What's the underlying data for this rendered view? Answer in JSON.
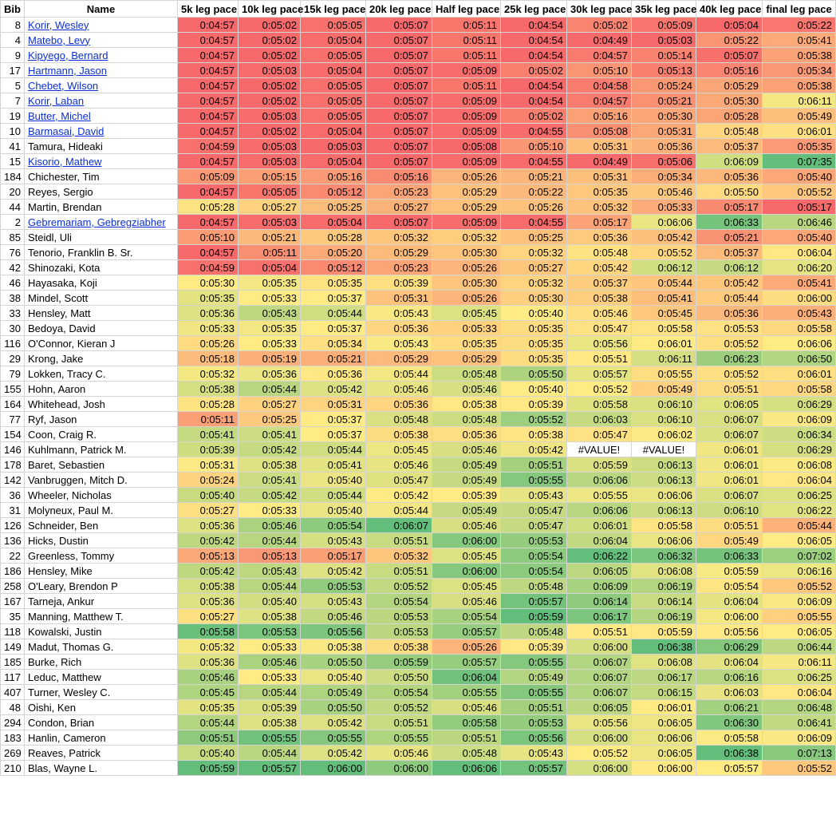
{
  "columns": [
    "Bib",
    "Name",
    "5k leg pace",
    "10k leg pace",
    "15k leg pace",
    "20k leg pace",
    "Half leg pace",
    "25k leg pace",
    "30k leg pace",
    "35k leg pace",
    "40k leg pace",
    "final leg pace"
  ],
  "color_scale": {
    "low": "#f8696b",
    "mid": "#ffeb84",
    "high": "#63be7b"
  },
  "rows": [
    {
      "bib": "8",
      "name": "Korir, Wesley",
      "link": true,
      "paces": [
        "0:04:57",
        "0:05:02",
        "0:05:05",
        "0:05:07",
        "0:05:11",
        "0:04:54",
        "0:05:02",
        "0:05:09",
        "0:05:04",
        "0:05:22"
      ]
    },
    {
      "bib": "4",
      "name": "Matebo, Levy",
      "link": true,
      "paces": [
        "0:04:57",
        "0:05:02",
        "0:05:04",
        "0:05:07",
        "0:05:11",
        "0:04:54",
        "0:04:49",
        "0:05:03",
        "0:05:22",
        "0:05:41"
      ]
    },
    {
      "bib": "9",
      "name": "Kipyego, Bernard",
      "link": true,
      "paces": [
        "0:04:57",
        "0:05:02",
        "0:05:05",
        "0:05:07",
        "0:05:11",
        "0:04:54",
        "0:04:57",
        "0:05:14",
        "0:05:07",
        "0:05:38"
      ]
    },
    {
      "bib": "17",
      "name": "Hartmann, Jason",
      "link": true,
      "paces": [
        "0:04:57",
        "0:05:03",
        "0:05:04",
        "0:05:07",
        "0:05:09",
        "0:05:02",
        "0:05:10",
        "0:05:13",
        "0:05:16",
        "0:05:34"
      ]
    },
    {
      "bib": "5",
      "name": "Chebet, Wilson",
      "link": true,
      "paces": [
        "0:04:57",
        "0:05:02",
        "0:05:05",
        "0:05:07",
        "0:05:11",
        "0:04:54",
        "0:04:58",
        "0:05:24",
        "0:05:29",
        "0:05:38"
      ]
    },
    {
      "bib": "7",
      "name": "Korir, Laban",
      "link": true,
      "paces": [
        "0:04:57",
        "0:05:02",
        "0:05:05",
        "0:05:07",
        "0:05:09",
        "0:04:54",
        "0:04:57",
        "0:05:21",
        "0:05:30",
        "0:06:11"
      ]
    },
    {
      "bib": "19",
      "name": "Butter, Michel",
      "link": true,
      "paces": [
        "0:04:57",
        "0:05:03",
        "0:05:05",
        "0:05:07",
        "0:05:09",
        "0:05:02",
        "0:05:16",
        "0:05:30",
        "0:05:28",
        "0:05:49"
      ]
    },
    {
      "bib": "10",
      "name": "Barmasai, David",
      "link": true,
      "paces": [
        "0:04:57",
        "0:05:02",
        "0:05:04",
        "0:05:07",
        "0:05:09",
        "0:04:55",
        "0:05:08",
        "0:05:31",
        "0:05:48",
        "0:06:01"
      ]
    },
    {
      "bib": "41",
      "name": "Tamura, Hideaki",
      "link": false,
      "paces": [
        "0:04:59",
        "0:05:03",
        "0:05:03",
        "0:05:07",
        "0:05:08",
        "0:05:10",
        "0:05:31",
        "0:05:36",
        "0:05:37",
        "0:05:35"
      ]
    },
    {
      "bib": "15",
      "name": "Kisorio, Mathew",
      "link": true,
      "paces": [
        "0:04:57",
        "0:05:03",
        "0:05:04",
        "0:05:07",
        "0:05:09",
        "0:04:55",
        "0:04:49",
        "0:05:06",
        "0:06:09",
        "0:07:35"
      ]
    },
    {
      "bib": "184",
      "name": "Chichester, Tim",
      "link": false,
      "paces": [
        "0:05:09",
        "0:05:15",
        "0:05:16",
        "0:05:16",
        "0:05:26",
        "0:05:21",
        "0:05:31",
        "0:05:34",
        "0:05:36",
        "0:05:40"
      ]
    },
    {
      "bib": "20",
      "name": "Reyes, Sergio",
      "link": false,
      "paces": [
        "0:04:57",
        "0:05:05",
        "0:05:12",
        "0:05:23",
        "0:05:29",
        "0:05:22",
        "0:05:35",
        "0:05:46",
        "0:05:50",
        "0:05:52"
      ]
    },
    {
      "bib": "44",
      "name": "Martin, Brendan",
      "link": false,
      "paces": [
        "0:05:28",
        "0:05:27",
        "0:05:25",
        "0:05:27",
        "0:05:29",
        "0:05:26",
        "0:05:32",
        "0:05:33",
        "0:05:17",
        "0:05:17"
      ]
    },
    {
      "bib": "2",
      "name": "Gebremariam, Gebregziabher",
      "link": true,
      "paces": [
        "0:04:57",
        "0:05:03",
        "0:05:04",
        "0:05:07",
        "0:05:09",
        "0:04:55",
        "0:05:17",
        "0:06:06",
        "0:06:33",
        "0:06:46"
      ]
    },
    {
      "bib": "85",
      "name": "Steidl, Uli",
      "link": false,
      "paces": [
        "0:05:10",
        "0:05:21",
        "0:05:28",
        "0:05:32",
        "0:05:32",
        "0:05:25",
        "0:05:36",
        "0:05:42",
        "0:05:21",
        "0:05:40"
      ]
    },
    {
      "bib": "76",
      "name": "Tenorio, Franklin B. Sr.",
      "link": false,
      "paces": [
        "0:04:57",
        "0:05:11",
        "0:05:20",
        "0:05:29",
        "0:05:30",
        "0:05:32",
        "0:05:48",
        "0:05:52",
        "0:05:37",
        "0:06:04"
      ]
    },
    {
      "bib": "42",
      "name": "Shinozaki, Kota",
      "link": false,
      "paces": [
        "0:04:59",
        "0:05:04",
        "0:05:12",
        "0:05:23",
        "0:05:26",
        "0:05:27",
        "0:05:42",
        "0:06:12",
        "0:06:12",
        "0:06:20"
      ]
    },
    {
      "bib": "46",
      "name": "Hayasaka, Koji",
      "link": false,
      "paces": [
        "0:05:30",
        "0:05:35",
        "0:05:35",
        "0:05:39",
        "0:05:30",
        "0:05:32",
        "0:05:37",
        "0:05:44",
        "0:05:42",
        "0:05:41"
      ]
    },
    {
      "bib": "38",
      "name": "Mindel, Scott",
      "link": false,
      "paces": [
        "0:05:35",
        "0:05:33",
        "0:05:37",
        "0:05:31",
        "0:05:26",
        "0:05:30",
        "0:05:38",
        "0:05:41",
        "0:05:44",
        "0:06:00"
      ]
    },
    {
      "bib": "33",
      "name": "Hensley, Matt",
      "link": false,
      "paces": [
        "0:05:36",
        "0:05:43",
        "0:05:44",
        "0:05:43",
        "0:05:45",
        "0:05:40",
        "0:05:46",
        "0:05:45",
        "0:05:36",
        "0:05:43"
      ]
    },
    {
      "bib": "30",
      "name": "Bedoya, David",
      "link": false,
      "paces": [
        "0:05:33",
        "0:05:35",
        "0:05:37",
        "0:05:36",
        "0:05:33",
        "0:05:35",
        "0:05:47",
        "0:05:58",
        "0:05:53",
        "0:05:58"
      ]
    },
    {
      "bib": "116",
      "name": "O'Connor, Kieran J",
      "link": false,
      "paces": [
        "0:05:26",
        "0:05:33",
        "0:05:34",
        "0:05:43",
        "0:05:35",
        "0:05:35",
        "0:05:56",
        "0:06:01",
        "0:05:52",
        "0:06:06"
      ]
    },
    {
      "bib": "29",
      "name": "Krong, Jake",
      "link": false,
      "paces": [
        "0:05:18",
        "0:05:19",
        "0:05:21",
        "0:05:29",
        "0:05:29",
        "0:05:35",
        "0:05:51",
        "0:06:11",
        "0:06:23",
        "0:06:50"
      ]
    },
    {
      "bib": "79",
      "name": "Lokken, Tracy C.",
      "link": false,
      "paces": [
        "0:05:32",
        "0:05:36",
        "0:05:36",
        "0:05:44",
        "0:05:48",
        "0:05:50",
        "0:05:57",
        "0:05:55",
        "0:05:52",
        "0:06:01"
      ]
    },
    {
      "bib": "155",
      "name": "Hohn, Aaron",
      "link": false,
      "paces": [
        "0:05:38",
        "0:05:44",
        "0:05:42",
        "0:05:46",
        "0:05:46",
        "0:05:40",
        "0:05:52",
        "0:05:49",
        "0:05:51",
        "0:05:58"
      ]
    },
    {
      "bib": "164",
      "name": "Whitehead, Josh",
      "link": false,
      "paces": [
        "0:05:28",
        "0:05:27",
        "0:05:31",
        "0:05:36",
        "0:05:38",
        "0:05:39",
        "0:05:58",
        "0:06:10",
        "0:06:05",
        "0:06:29"
      ]
    },
    {
      "bib": "77",
      "name": "Ryf, Jason",
      "link": false,
      "paces": [
        "0:05:11",
        "0:05:25",
        "0:05:37",
        "0:05:48",
        "0:05:48",
        "0:05:52",
        "0:06:03",
        "0:06:10",
        "0:06:07",
        "0:06:09"
      ]
    },
    {
      "bib": "154",
      "name": "Coon, Craig R.",
      "link": false,
      "paces": [
        "0:05:41",
        "0:05:41",
        "0:05:37",
        "0:05:38",
        "0:05:36",
        "0:05:38",
        "0:05:47",
        "0:06:02",
        "0:06:07",
        "0:06:34"
      ]
    },
    {
      "bib": "146",
      "name": "Kuhlmann, Patrick M.",
      "link": false,
      "paces": [
        "0:05:39",
        "0:05:42",
        "0:05:44",
        "0:05:45",
        "0:05:46",
        "0:05:42",
        "#VALUE!",
        "#VALUE!",
        "0:06:01",
        "0:06:29"
      ]
    },
    {
      "bib": "178",
      "name": "Baret, Sebastien",
      "link": false,
      "paces": [
        "0:05:31",
        "0:05:38",
        "0:05:41",
        "0:05:46",
        "0:05:49",
        "0:05:51",
        "0:05:59",
        "0:06:13",
        "0:06:01",
        "0:06:08"
      ]
    },
    {
      "bib": "142",
      "name": "Vanbruggen, Mitch D.",
      "link": false,
      "paces": [
        "0:05:24",
        "0:05:41",
        "0:05:40",
        "0:05:47",
        "0:05:49",
        "0:05:55",
        "0:06:06",
        "0:06:13",
        "0:06:01",
        "0:06:04"
      ]
    },
    {
      "bib": "36",
      "name": "Wheeler, Nicholas",
      "link": false,
      "paces": [
        "0:05:40",
        "0:05:42",
        "0:05:44",
        "0:05:42",
        "0:05:39",
        "0:05:43",
        "0:05:55",
        "0:06:06",
        "0:06:07",
        "0:06:25"
      ]
    },
    {
      "bib": "31",
      "name": "Molyneux, Paul M.",
      "link": false,
      "paces": [
        "0:05:27",
        "0:05:33",
        "0:05:40",
        "0:05:44",
        "0:05:49",
        "0:05:47",
        "0:06:06",
        "0:06:13",
        "0:06:10",
        "0:06:22"
      ]
    },
    {
      "bib": "126",
      "name": "Schneider, Ben",
      "link": false,
      "paces": [
        "0:05:36",
        "0:05:46",
        "0:05:54",
        "0:06:07",
        "0:05:46",
        "0:05:47",
        "0:06:01",
        "0:05:58",
        "0:05:51",
        "0:05:44"
      ]
    },
    {
      "bib": "136",
      "name": "Hicks, Dustin",
      "link": false,
      "paces": [
        "0:05:42",
        "0:05:44",
        "0:05:43",
        "0:05:51",
        "0:06:00",
        "0:05:53",
        "0:06:04",
        "0:06:06",
        "0:05:49",
        "0:06:05"
      ]
    },
    {
      "bib": "22",
      "name": "Greenless, Tommy",
      "link": false,
      "paces": [
        "0:05:13",
        "0:05:13",
        "0:05:17",
        "0:05:32",
        "0:05:45",
        "0:05:54",
        "0:06:22",
        "0:06:32",
        "0:06:33",
        "0:07:02"
      ]
    },
    {
      "bib": "186",
      "name": "Hensley, Mike",
      "link": false,
      "paces": [
        "0:05:42",
        "0:05:43",
        "0:05:42",
        "0:05:51",
        "0:06:00",
        "0:05:54",
        "0:06:05",
        "0:06:08",
        "0:05:59",
        "0:06:16"
      ]
    },
    {
      "bib": "258",
      "name": "O'Leary, Brendon P",
      "link": false,
      "paces": [
        "0:05:38",
        "0:05:44",
        "0:05:53",
        "0:05:52",
        "0:05:45",
        "0:05:48",
        "0:06:09",
        "0:06:19",
        "0:05:54",
        "0:05:52"
      ]
    },
    {
      "bib": "167",
      "name": "Tarneja, Ankur",
      "link": false,
      "paces": [
        "0:05:36",
        "0:05:40",
        "0:05:43",
        "0:05:54",
        "0:05:46",
        "0:05:57",
        "0:06:14",
        "0:06:14",
        "0:06:04",
        "0:06:09"
      ]
    },
    {
      "bib": "35",
      "name": "Manning, Matthew T.",
      "link": false,
      "paces": [
        "0:05:27",
        "0:05:38",
        "0:05:46",
        "0:05:53",
        "0:05:54",
        "0:05:59",
        "0:06:17",
        "0:06:19",
        "0:06:00",
        "0:05:55"
      ]
    },
    {
      "bib": "118",
      "name": "Kowalski, Justin",
      "link": false,
      "paces": [
        "0:05:58",
        "0:05:53",
        "0:05:56",
        "0:05:53",
        "0:05:57",
        "0:05:48",
        "0:05:51",
        "0:05:59",
        "0:05:56",
        "0:06:05"
      ]
    },
    {
      "bib": "149",
      "name": "Madut, Thomas G.",
      "link": false,
      "paces": [
        "0:05:32",
        "0:05:33",
        "0:05:38",
        "0:05:38",
        "0:05:26",
        "0:05:39",
        "0:06:00",
        "0:06:38",
        "0:06:29",
        "0:06:44"
      ]
    },
    {
      "bib": "185",
      "name": "Burke, Rich",
      "link": false,
      "paces": [
        "0:05:36",
        "0:05:46",
        "0:05:50",
        "0:05:59",
        "0:05:57",
        "0:05:55",
        "0:06:07",
        "0:06:08",
        "0:06:04",
        "0:06:11"
      ]
    },
    {
      "bib": "117",
      "name": "Leduc, Matthew",
      "link": false,
      "paces": [
        "0:05:46",
        "0:05:33",
        "0:05:40",
        "0:05:50",
        "0:06:04",
        "0:05:49",
        "0:06:07",
        "0:06:17",
        "0:06:16",
        "0:06:25"
      ]
    },
    {
      "bib": "407",
      "name": "Turner, Wesley C.",
      "link": false,
      "paces": [
        "0:05:45",
        "0:05:44",
        "0:05:49",
        "0:05:54",
        "0:05:55",
        "0:05:55",
        "0:06:07",
        "0:06:15",
        "0:06:03",
        "0:06:04"
      ]
    },
    {
      "bib": "48",
      "name": "Oishi, Ken",
      "link": false,
      "paces": [
        "0:05:35",
        "0:05:39",
        "0:05:50",
        "0:05:52",
        "0:05:46",
        "0:05:51",
        "0:06:05",
        "0:06:01",
        "0:06:21",
        "0:06:48"
      ]
    },
    {
      "bib": "294",
      "name": "Condon, Brian",
      "link": false,
      "paces": [
        "0:05:44",
        "0:05:38",
        "0:05:42",
        "0:05:51",
        "0:05:58",
        "0:05:53",
        "0:05:56",
        "0:06:05",
        "0:06:30",
        "0:06:41"
      ]
    },
    {
      "bib": "183",
      "name": "Hanlin, Cameron",
      "link": false,
      "paces": [
        "0:05:51",
        "0:05:55",
        "0:05:55",
        "0:05:55",
        "0:05:51",
        "0:05:56",
        "0:06:00",
        "0:06:06",
        "0:05:58",
        "0:06:09"
      ]
    },
    {
      "bib": "269",
      "name": "Reaves, Patrick",
      "link": false,
      "paces": [
        "0:05:40",
        "0:05:44",
        "0:05:42",
        "0:05:46",
        "0:05:48",
        "0:05:43",
        "0:05:52",
        "0:06:05",
        "0:06:38",
        "0:07:13"
      ]
    },
    {
      "bib": "210",
      "name": "Blas, Wayne L.",
      "link": false,
      "paces": [
        "0:05:59",
        "0:05:57",
        "0:06:00",
        "0:06:00",
        "0:06:06",
        "0:05:57",
        "0:06:00",
        "0:06:00",
        "0:05:57",
        "0:05:52"
      ]
    }
  ]
}
